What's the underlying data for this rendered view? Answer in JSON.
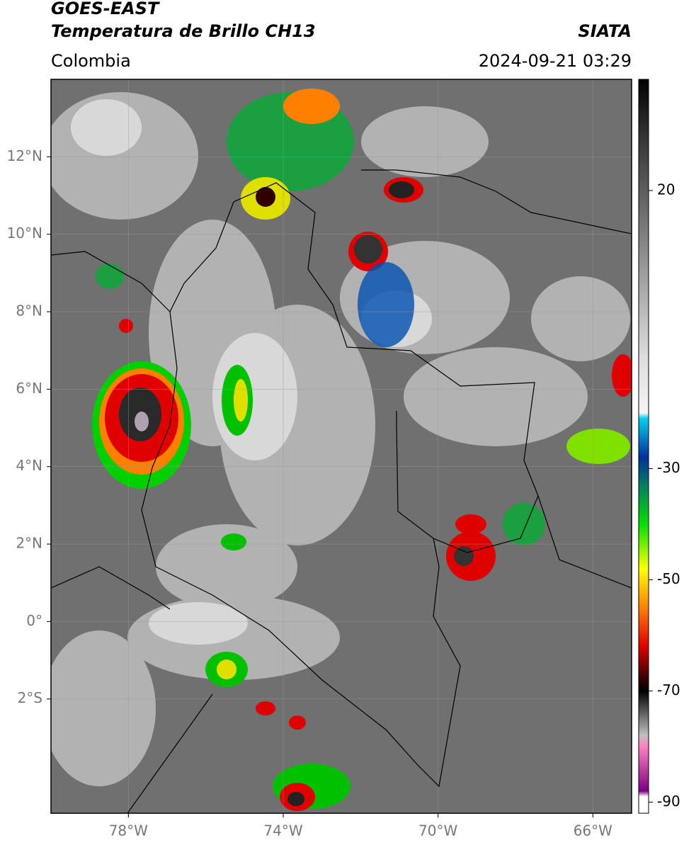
{
  "header": {
    "title": "GOES-EAST",
    "subtitle": "Temperatura de Brillo CH13",
    "source": "SIATA",
    "region": "Colombia",
    "timestamp": "2024-09-21 03:29"
  },
  "map": {
    "lonlim": [
      -80,
      -65
    ],
    "latlim": [
      -4.95,
      14
    ],
    "grid": true,
    "lonticks": [
      {
        "value": -78,
        "label": "78°W"
      },
      {
        "value": -74,
        "label": "74°W"
      },
      {
        "value": -70,
        "label": "70°W"
      },
      {
        "value": -66,
        "label": "66°W"
      }
    ],
    "latticks": [
      {
        "value": 12,
        "label": "12°N"
      },
      {
        "value": 10,
        "label": "10°N"
      },
      {
        "value": 8,
        "label": "8°N"
      },
      {
        "value": 6,
        "label": "6°N"
      },
      {
        "value": 4,
        "label": "4°N"
      },
      {
        "value": 2,
        "label": "2°N"
      },
      {
        "value": 0,
        "label": "0°"
      },
      {
        "value": -2,
        "label": "2°S"
      }
    ]
  },
  "colorbar": {
    "lim": [
      -92,
      40
    ],
    "ticks": [
      20,
      -30,
      -50,
      -70,
      -90
    ],
    "colormap": [
      {
        "value": 40,
        "color": "#000000"
      },
      {
        "value": 30,
        "color": "#333333"
      },
      {
        "value": 10,
        "color": "#888888"
      },
      {
        "value": -10,
        "color": "#dddddd"
      },
      {
        "value": -20,
        "color": "#f4f4f4"
      },
      {
        "value": -21,
        "color": "#00d0f0"
      },
      {
        "value": -28,
        "color": "#0030a0"
      },
      {
        "value": -33,
        "color": "#008060"
      },
      {
        "value": -40,
        "color": "#00e000"
      },
      {
        "value": -48,
        "color": "#ffff00"
      },
      {
        "value": -55,
        "color": "#ff8000"
      },
      {
        "value": -62,
        "color": "#e00000"
      },
      {
        "value": -68,
        "color": "#300000"
      },
      {
        "value": -70,
        "color": "#000000"
      },
      {
        "value": -78,
        "color": "#c0c0c0"
      },
      {
        "value": -80,
        "color": "#ff80c0"
      },
      {
        "value": -88,
        "color": "#800080"
      },
      {
        "value": -89,
        "color": "#ffffff"
      },
      {
        "value": -92,
        "color": "#ffffff"
      }
    ]
  }
}
